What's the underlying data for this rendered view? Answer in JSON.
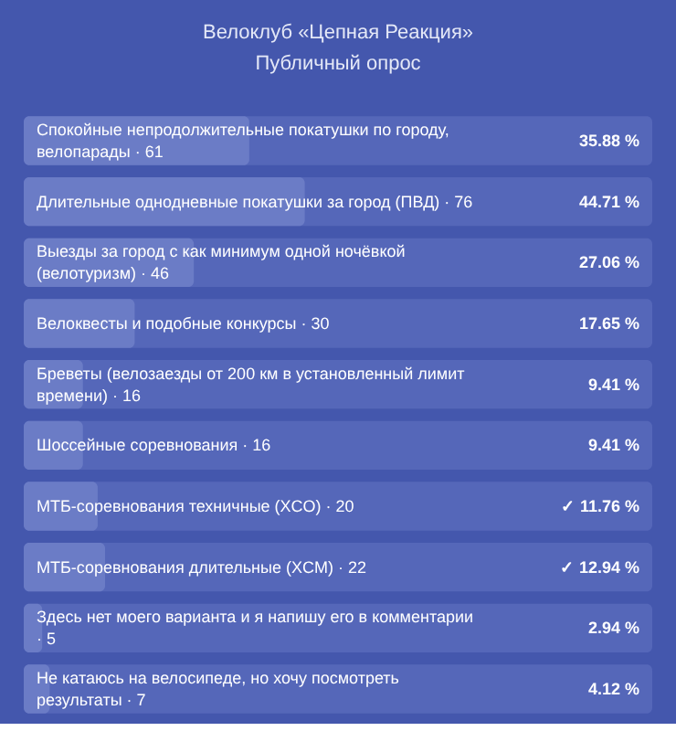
{
  "chart_data": {
    "type": "bar",
    "orientation": "horizontal",
    "title": "Велоклуб «Цепная Реакция»",
    "subtitle": "Публичный опрос",
    "categories": [
      "Спокойные непродолжительные покатушки по городу, велопарады · 61",
      "Длительные однодневные покатушки за город (ПВД) · 76",
      "Выезды за город с как минимум одной ночёвкой (велотуризм) · 46",
      "Велоквесты и подобные конкурсы · 30",
      "Бреветы (велозаезды от 200 км в установленный лимит времени) · 16",
      "Шоссейные соревнования · 16",
      "МТБ-соревнования техничные (XCO) · 20",
      "МТБ-соревнования длительные (XCM) · 22",
      "Здесь нет моего варианта и я напишу его в комментарии · 5",
      "Не катаюсь на велосипеде, но хочу посмотреть результаты · 7"
    ],
    "values": [
      35.88,
      44.71,
      27.06,
      17.65,
      9.41,
      9.41,
      11.76,
      12.94,
      2.94,
      4.12
    ],
    "value_labels": [
      "35.88 %",
      "44.71 %",
      "27.06 %",
      "17.65 %",
      "9.41 %",
      "9.41 %",
      "✓ 11.76 %",
      "✓ 12.94 %",
      "2.94 %",
      "4.12 %"
    ],
    "color": "#6b7cc6",
    "xlim": [
      0,
      100
    ],
    "tick_labels": false,
    "grid": false
  }
}
